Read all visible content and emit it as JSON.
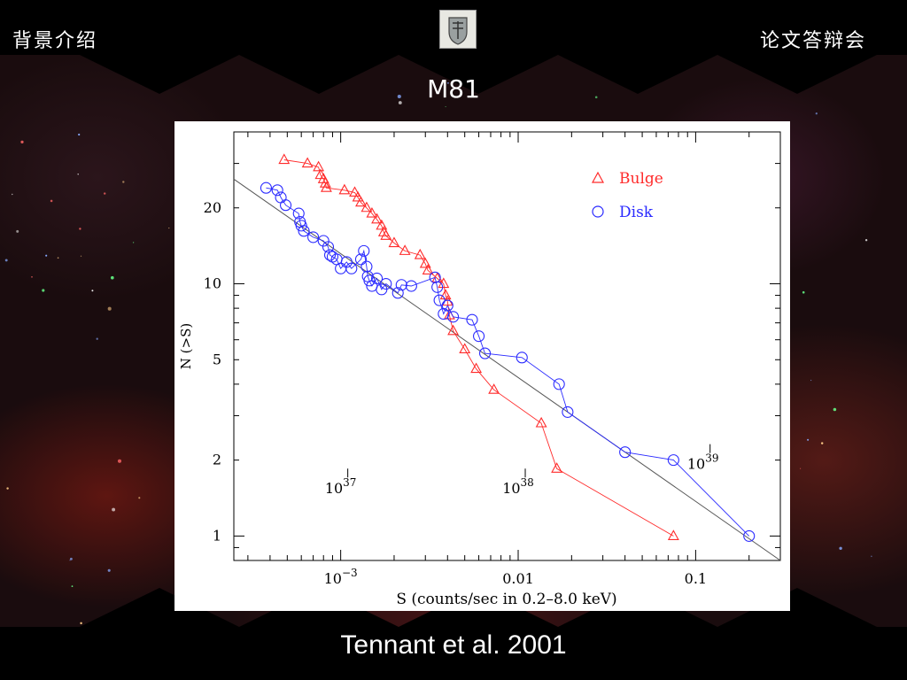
{
  "header": {
    "left_text": "背景介绍",
    "right_text": "论文答辩会",
    "logo_icon": "university-crest-icon"
  },
  "slide": {
    "title": "M81",
    "caption": "Tennant et al. 2001"
  },
  "colors": {
    "bulge": "#ff2a2a",
    "disk": "#2a2aff",
    "fit_line": "#555555"
  },
  "chart_data": {
    "type": "scatter",
    "x_scale": "log",
    "y_scale": "log",
    "xlim": [
      0.00025,
      0.3
    ],
    "ylim": [
      0.8,
      40
    ],
    "xlabel": "S (counts/sec in 0.2–8.0 keV)",
    "ylabel": "N (>S)",
    "x_ticks": [
      {
        "value": 0.001,
        "base": "10",
        "exp": "−3"
      },
      {
        "value": 0.01,
        "label": "0.01"
      },
      {
        "value": 0.1,
        "label": "0.1"
      }
    ],
    "y_ticks": [
      {
        "value": 1,
        "label": "1"
      },
      {
        "value": 2,
        "label": "2"
      },
      {
        "value": 5,
        "label": "5"
      },
      {
        "value": 10,
        "label": "10"
      },
      {
        "value": 20,
        "label": "20"
      }
    ],
    "legend_position": "top-right",
    "series": [
      {
        "name": "Bulge",
        "marker": "triangle",
        "points": [
          [
            0.00048,
            31
          ],
          [
            0.00065,
            30
          ],
          [
            0.00075,
            29
          ],
          [
            0.00077,
            27
          ],
          [
            0.0008,
            26
          ],
          [
            0.00082,
            25
          ],
          [
            0.00083,
            24
          ],
          [
            0.00105,
            23.5
          ],
          [
            0.0012,
            23
          ],
          [
            0.00125,
            22
          ],
          [
            0.0013,
            21
          ],
          [
            0.0014,
            20
          ],
          [
            0.0015,
            19
          ],
          [
            0.0016,
            18
          ],
          [
            0.0017,
            17
          ],
          [
            0.00175,
            16
          ],
          [
            0.0018,
            15.5
          ],
          [
            0.002,
            14.5
          ],
          [
            0.0023,
            13.5
          ],
          [
            0.0028,
            13
          ],
          [
            0.003,
            12
          ],
          [
            0.0031,
            11.3
          ],
          [
            0.0035,
            10.5
          ],
          [
            0.0038,
            10
          ],
          [
            0.0039,
            9
          ],
          [
            0.004,
            8.5
          ],
          [
            0.0041,
            7.5
          ],
          [
            0.0043,
            6.5
          ],
          [
            0.005,
            5.5
          ],
          [
            0.0058,
            4.6
          ],
          [
            0.0073,
            3.8
          ],
          [
            0.0135,
            2.8
          ],
          [
            0.0165,
            1.85
          ],
          [
            0.075,
            1.0
          ]
        ]
      },
      {
        "name": "Disk",
        "marker": "circle",
        "points": [
          [
            0.00038,
            24
          ],
          [
            0.00044,
            23.5
          ],
          [
            0.00046,
            22
          ],
          [
            0.00049,
            20.5
          ],
          [
            0.00058,
            19
          ],
          [
            0.00059,
            17.6
          ],
          [
            0.0006,
            17
          ],
          [
            0.00062,
            16.2
          ],
          [
            0.0007,
            15.3
          ],
          [
            0.0008,
            14.8
          ],
          [
            0.00085,
            14
          ],
          [
            0.00087,
            13
          ],
          [
            0.0009,
            12.8
          ],
          [
            0.00095,
            12.5
          ],
          [
            0.001,
            11.5
          ],
          [
            0.00108,
            12.2
          ],
          [
            0.00115,
            11.5
          ],
          [
            0.0013,
            12.5
          ],
          [
            0.00135,
            13.5
          ],
          [
            0.0014,
            11.7
          ],
          [
            0.00142,
            10.7
          ],
          [
            0.00145,
            10.3
          ],
          [
            0.0015,
            9.8
          ],
          [
            0.0016,
            10.5
          ],
          [
            0.0017,
            9.5
          ],
          [
            0.0018,
            10
          ],
          [
            0.0021,
            9.2
          ],
          [
            0.0022,
            9.9
          ],
          [
            0.0025,
            9.8
          ],
          [
            0.0034,
            10.6
          ],
          [
            0.0035,
            9.7
          ],
          [
            0.0036,
            8.6
          ],
          [
            0.0038,
            7.6
          ],
          [
            0.004,
            8.2
          ],
          [
            0.0043,
            7.4
          ],
          [
            0.0055,
            7.2
          ],
          [
            0.006,
            6.2
          ],
          [
            0.0065,
            5.3
          ],
          [
            0.0105,
            5.1
          ],
          [
            0.017,
            4.0
          ],
          [
            0.019,
            3.1
          ],
          [
            0.04,
            2.15
          ],
          [
            0.075,
            2.0
          ],
          [
            0.2,
            1.0
          ]
        ]
      }
    ],
    "fit_line": {
      "from": [
        0.00025,
        26
      ],
      "to": [
        0.3,
        0.8
      ]
    },
    "annotations": [
      {
        "x": 0.001,
        "y": 1.6,
        "base": "10",
        "exp": "37"
      },
      {
        "x": 0.01,
        "y": 1.6,
        "base": "10",
        "exp": "38"
      },
      {
        "x": 0.11,
        "y": 2.0,
        "base": "10",
        "exp": "39"
      }
    ]
  }
}
